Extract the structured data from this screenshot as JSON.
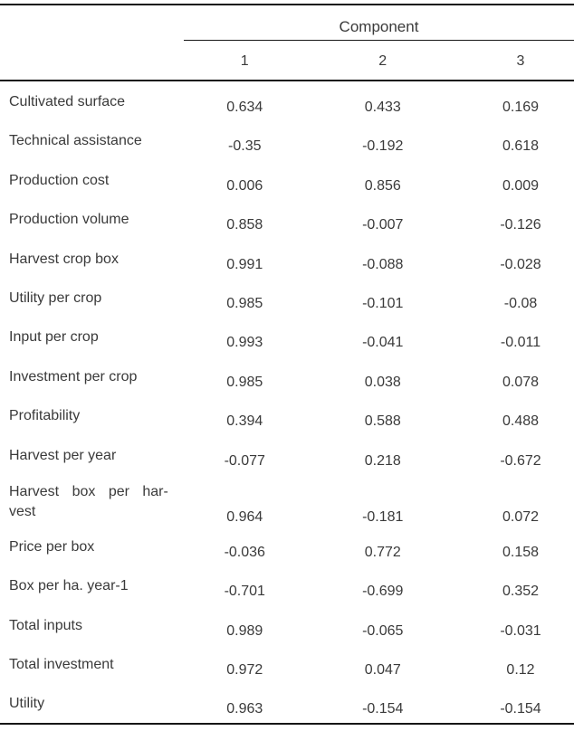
{
  "table": {
    "title": "Component",
    "column_headers": [
      "1",
      "2",
      "3"
    ],
    "rows": [
      {
        "label": "Cultivated surface",
        "values": [
          "0.634",
          "0.433",
          "0.169"
        ]
      },
      {
        "label": "Technical assistance",
        "values": [
          "-0.35",
          "-0.192",
          "0.618"
        ]
      },
      {
        "label": "Production cost",
        "values": [
          "0.006",
          "0.856",
          "0.009"
        ]
      },
      {
        "label": "Production volume",
        "values": [
          "0.858",
          "-0.007",
          "-0.126"
        ]
      },
      {
        "label": "Harvest crop box",
        "values": [
          "0.991",
          "-0.088",
          "-0.028"
        ]
      },
      {
        "label": "Utility per crop",
        "values": [
          "0.985",
          "-0.101",
          "-0.08"
        ]
      },
      {
        "label": "Input per crop",
        "values": [
          "0.993",
          "-0.041",
          "-0.011"
        ]
      },
      {
        "label": "Investment per crop",
        "values": [
          "0.985",
          "0.038",
          "0.078"
        ]
      },
      {
        "label": "Profitability",
        "values": [
          "0.394",
          "0.588",
          "0.488"
        ]
      },
      {
        "label": "Harvest per year",
        "values": [
          "-0.077",
          "0.218",
          "-0.672"
        ]
      },
      {
        "label": "Harvest box per har-\nvest",
        "values": [
          "0.964",
          "-0.181",
          "0.072"
        ]
      },
      {
        "label": "Price per box",
        "values": [
          "-0.036",
          "0.772",
          "0.158"
        ]
      },
      {
        "label": "Box per ha. year-1",
        "values": [
          "-0.701",
          "-0.699",
          "0.352"
        ]
      },
      {
        "label": "Total inputs",
        "values": [
          "0.989",
          "-0.065",
          "-0.031"
        ]
      },
      {
        "label": "Total investment",
        "values": [
          "0.972",
          "0.047",
          "0.12"
        ]
      },
      {
        "label": "Utility",
        "values": [
          "0.963",
          "-0.154",
          "-0.154"
        ]
      }
    ],
    "colors": {
      "text": "#3a3a3a",
      "rule": "#161616",
      "background": "#ffffff"
    }
  },
  "chart_data": {
    "type": "table",
    "title": "Component",
    "columns": [
      "1",
      "2",
      "3"
    ],
    "row_labels": [
      "Cultivated surface",
      "Technical assistance",
      "Production cost",
      "Production volume",
      "Harvest crop box",
      "Utility per crop",
      "Input per crop",
      "Investment per crop",
      "Profitability",
      "Harvest per year",
      "Harvest box per harvest",
      "Price per box",
      "Box per ha. year-1",
      "Total inputs",
      "Total investment",
      "Utility"
    ],
    "values": [
      [
        0.634,
        0.433,
        0.169
      ],
      [
        -0.35,
        -0.192,
        0.618
      ],
      [
        0.006,
        0.856,
        0.009
      ],
      [
        0.858,
        -0.007,
        -0.126
      ],
      [
        0.991,
        -0.088,
        -0.028
      ],
      [
        0.985,
        -0.101,
        -0.08
      ],
      [
        0.993,
        -0.041,
        -0.011
      ],
      [
        0.985,
        0.038,
        0.078
      ],
      [
        0.394,
        0.588,
        0.488
      ],
      [
        -0.077,
        0.218,
        -0.672
      ],
      [
        0.964,
        -0.181,
        0.072
      ],
      [
        -0.036,
        0.772,
        0.158
      ],
      [
        -0.701,
        -0.699,
        0.352
      ],
      [
        0.989,
        -0.065,
        -0.031
      ],
      [
        0.972,
        0.047,
        0.12
      ],
      [
        0.963,
        -0.154,
        -0.154
      ]
    ]
  }
}
